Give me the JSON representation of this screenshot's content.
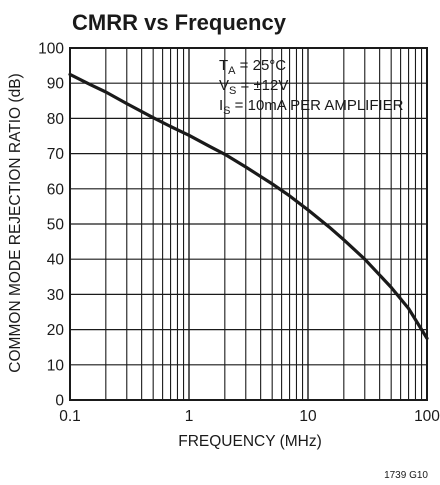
{
  "chart_data": {
    "type": "line",
    "title": "CMRR vs Frequency",
    "xlabel": "FREQUENCY (MHz)",
    "ylabel": "COMMON MODE REJECTION RATIO (dB)",
    "x_scale": "log",
    "xlim": [
      0.1,
      100
    ],
    "ylim": [
      0,
      100
    ],
    "x_ticks": [
      "0.1",
      "1",
      "10",
      "100"
    ],
    "y_ticks": [
      "0",
      "10",
      "20",
      "30",
      "40",
      "50",
      "60",
      "70",
      "80",
      "90",
      "100"
    ],
    "grid": true,
    "conditions": [
      {
        "main": "T",
        "sub": "A",
        "rest": " = 25°C"
      },
      {
        "main": "V",
        "sub": "S",
        "rest": " = ±12V"
      },
      {
        "main": "I",
        "sub": "S",
        "rest": " = 10mA PER AMPLIFIER"
      }
    ],
    "figure_code": "1739 G10",
    "series": [
      {
        "x": [
          0.1,
          0.15,
          0.2,
          0.3,
          0.5,
          0.7,
          1,
          1.5,
          2,
          3,
          5,
          7,
          10,
          15,
          20,
          30,
          50,
          70,
          100
        ],
        "y": [
          92.5,
          89.5,
          87.5,
          84.2,
          80.2,
          77.7,
          75.2,
          72.0,
          69.8,
          66.2,
          61.4,
          58.0,
          54.0,
          49.2,
          45.5,
          40.0,
          32.0,
          26.0,
          17.5
        ]
      }
    ]
  }
}
